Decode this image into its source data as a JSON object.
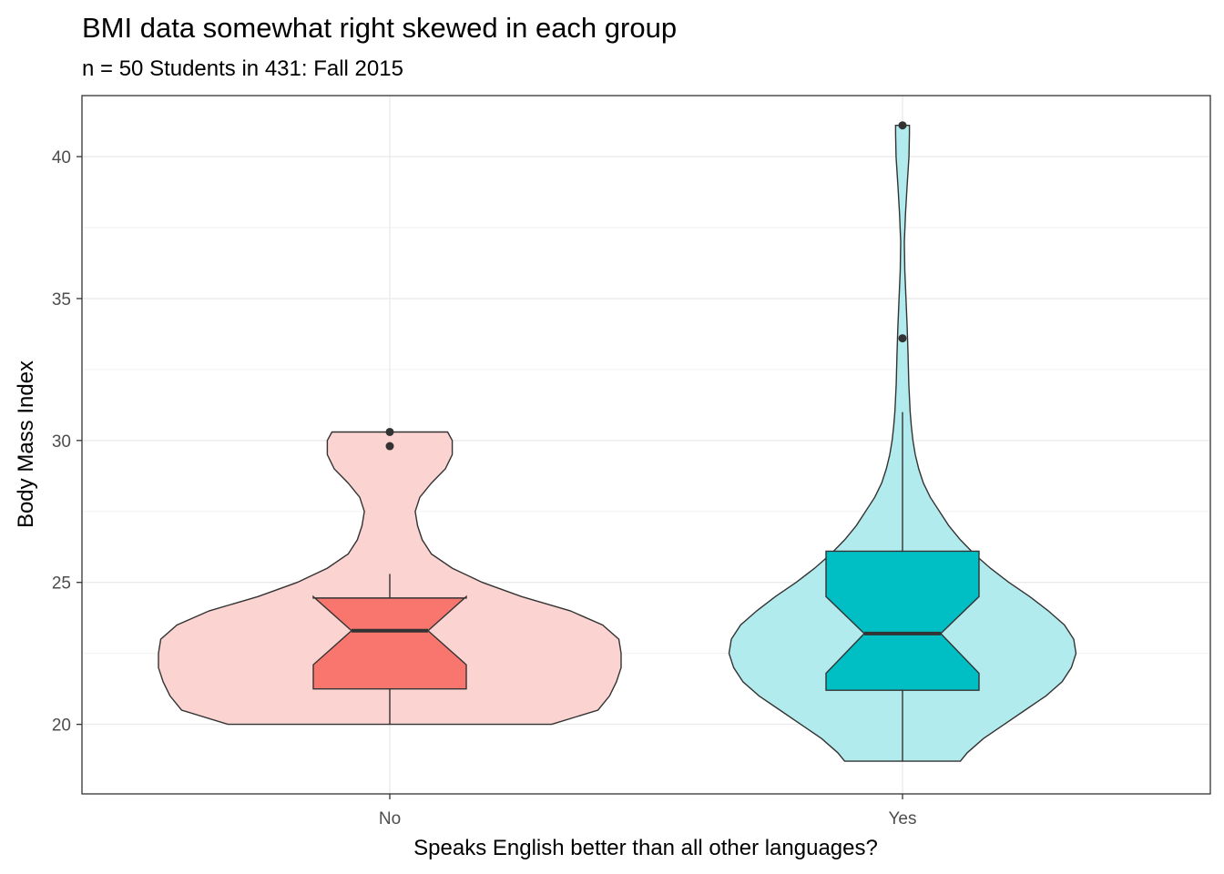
{
  "chart_data": {
    "type": "violin-boxplot",
    "title": "BMI data somewhat right skewed in each group",
    "subtitle": "n = 50 Students in 431: Fall 2015",
    "xlabel": "Speaks English better than all other languages?",
    "ylabel": "Body Mass Index",
    "categories": [
      "No",
      "Yes"
    ],
    "ylim": [
      17.55,
      42.15
    ],
    "yticks": [
      20,
      25,
      30,
      35,
      40
    ],
    "grid": true,
    "notched": true,
    "groups": [
      {
        "category": "No",
        "fill": "#F8766D",
        "violin_fill": "#FBD3D0",
        "min": 20.0,
        "q1": 21.25,
        "median": 23.3,
        "q3": 24.45,
        "whisker_high": 25.3,
        "notch_low": 22.1,
        "notch_high": 24.5,
        "outliers": [
          29.8,
          30.3
        ],
        "violin_profile": [
          [
            20.0,
            0.7
          ],
          [
            20.5,
            0.9
          ],
          [
            21.0,
            0.95
          ],
          [
            21.5,
            0.98
          ],
          [
            22.0,
            1.0
          ],
          [
            22.5,
            1.0
          ],
          [
            23.0,
            0.99
          ],
          [
            23.5,
            0.92
          ],
          [
            24.0,
            0.78
          ],
          [
            24.5,
            0.57
          ],
          [
            25.0,
            0.4
          ],
          [
            25.5,
            0.27
          ],
          [
            26.0,
            0.18
          ],
          [
            26.5,
            0.14
          ],
          [
            27.0,
            0.12
          ],
          [
            27.5,
            0.11
          ],
          [
            28.0,
            0.13
          ],
          [
            28.5,
            0.18
          ],
          [
            29.0,
            0.24
          ],
          [
            29.5,
            0.27
          ],
          [
            30.0,
            0.27
          ],
          [
            30.3,
            0.25
          ]
        ]
      },
      {
        "category": "Yes",
        "fill": "#00BFC4",
        "violin_fill": "#B2EBED",
        "min": 18.7,
        "q1": 21.2,
        "median": 23.2,
        "q3": 26.1,
        "whisker_high": 31.0,
        "notch_low": 21.8,
        "notch_high": 24.5,
        "outliers": [
          33.6,
          41.1
        ],
        "violin_profile": [
          [
            18.7,
            0.25
          ],
          [
            19.0,
            0.28
          ],
          [
            19.5,
            0.35
          ],
          [
            20.0,
            0.44
          ],
          [
            20.5,
            0.53
          ],
          [
            21.0,
            0.62
          ],
          [
            21.5,
            0.69
          ],
          [
            22.0,
            0.73
          ],
          [
            22.5,
            0.75
          ],
          [
            23.0,
            0.74
          ],
          [
            23.5,
            0.7
          ],
          [
            24.0,
            0.63
          ],
          [
            24.5,
            0.55
          ],
          [
            25.0,
            0.46
          ],
          [
            25.5,
            0.38
          ],
          [
            26.0,
            0.31
          ],
          [
            26.5,
            0.25
          ],
          [
            27.0,
            0.2
          ],
          [
            27.5,
            0.16
          ],
          [
            28.0,
            0.12
          ],
          [
            28.5,
            0.09
          ],
          [
            29.0,
            0.07
          ],
          [
            29.5,
            0.055
          ],
          [
            30.0,
            0.045
          ],
          [
            30.5,
            0.038
          ],
          [
            31.0,
            0.033
          ],
          [
            32.0,
            0.027
          ],
          [
            33.0,
            0.024
          ],
          [
            34.0,
            0.02
          ],
          [
            35.0,
            0.015
          ],
          [
            36.0,
            0.01
          ],
          [
            37.0,
            0.008
          ],
          [
            38.0,
            0.013
          ],
          [
            39.0,
            0.02
          ],
          [
            40.0,
            0.028
          ],
          [
            40.8,
            0.03
          ],
          [
            41.1,
            0.03
          ]
        ]
      }
    ]
  }
}
